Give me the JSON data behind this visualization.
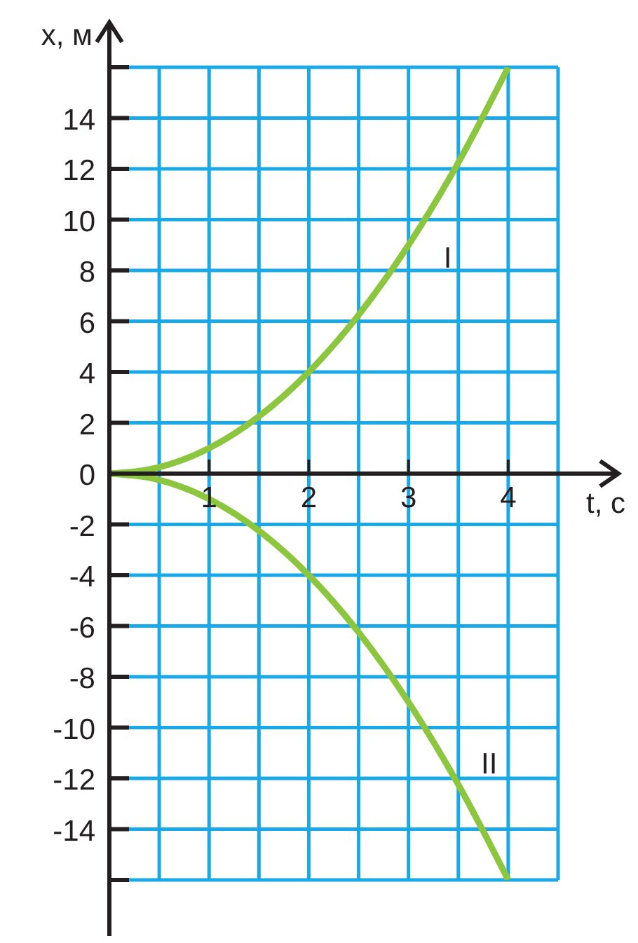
{
  "chart_data": {
    "type": "line",
    "xlabel": "t, с",
    "ylabel": "x, м",
    "x": [
      0,
      0.5,
      1,
      1.5,
      2,
      2.5,
      3,
      3.5,
      4
    ],
    "series": [
      {
        "name": "I",
        "color": "#8cc63f",
        "values": [
          0,
          0.25,
          1,
          2.25,
          4,
          6.25,
          9,
          12.25,
          16
        ]
      },
      {
        "name": "II",
        "color": "#8cc63f",
        "values": [
          0,
          -0.25,
          -1,
          -2.25,
          -4,
          -6.25,
          -9,
          -12.25,
          -16
        ]
      }
    ],
    "xlim": [
      0,
      4.5
    ],
    "xticks": [
      {
        "value": 0.5,
        "label": null
      },
      1,
      {
        "value": 1.5,
        "label": null
      },
      2,
      {
        "value": 2.5,
        "label": null
      },
      3,
      {
        "value": 3.5,
        "label": null
      },
      4,
      {
        "value": 4.5,
        "label": null
      }
    ],
    "ylim": [
      -16,
      16
    ],
    "yticks": [
      {
        "value": -16,
        "label": null
      },
      -14,
      -12,
      -10,
      -8,
      -6,
      -4,
      -2,
      0,
      2,
      4,
      6,
      8,
      10,
      12,
      14,
      {
        "value": 16,
        "label": null
      }
    ],
    "grid": true,
    "marker": "none",
    "line_style": "solid"
  }
}
